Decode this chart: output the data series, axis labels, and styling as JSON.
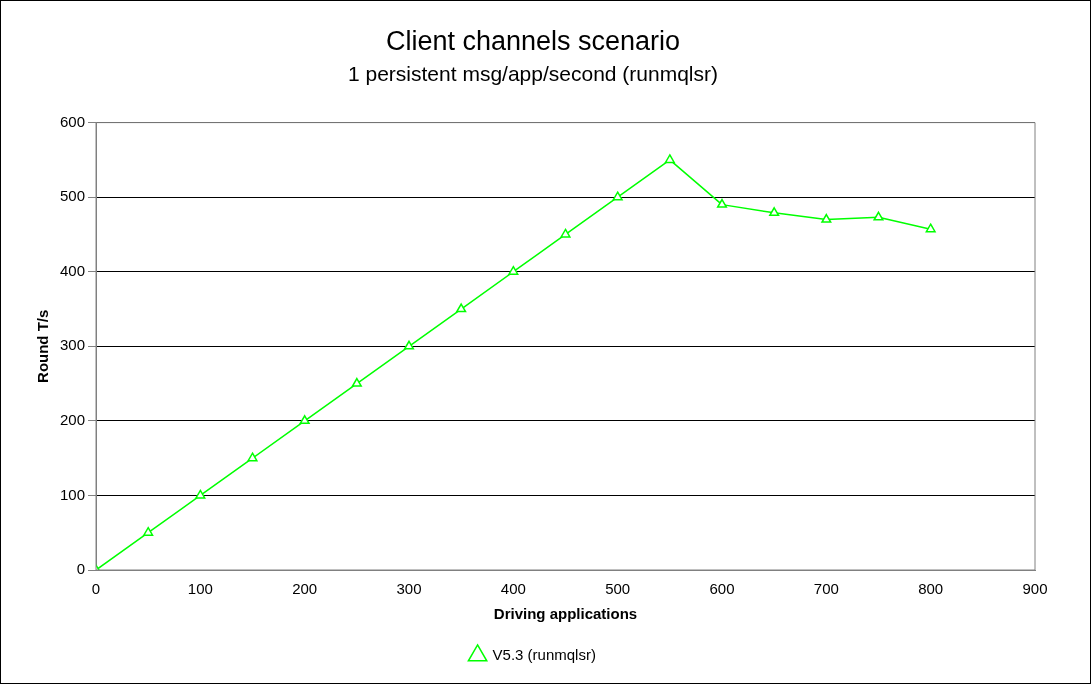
{
  "chart_data": {
    "type": "line",
    "title": "Client channels scenario",
    "subtitle": "1 persistent msg/app/second (runmqlsr)",
    "xlabel": "Driving applications",
    "ylabel": "Round T/s",
    "x": [
      0,
      50,
      100,
      150,
      200,
      250,
      300,
      350,
      400,
      450,
      500,
      550,
      600,
      650,
      700,
      750,
      800
    ],
    "series": [
      {
        "name": "V5.3 (runmqlsr)",
        "color": "#00ff00",
        "values": [
          0,
          50,
          100,
          150,
          200,
          250,
          300,
          350,
          400,
          450,
          500,
          550,
          490,
          479,
          470,
          473,
          457
        ]
      }
    ],
    "xlim": [
      0,
      900
    ],
    "xticks": [
      0,
      100,
      200,
      300,
      400,
      500,
      600,
      700,
      800,
      900
    ],
    "ylim": [
      0,
      600
    ],
    "yticks": [
      0,
      100,
      200,
      300,
      400,
      500,
      600
    ],
    "grid": "y",
    "legend": "bottom",
    "marker": "triangle",
    "line_style": "solid"
  }
}
